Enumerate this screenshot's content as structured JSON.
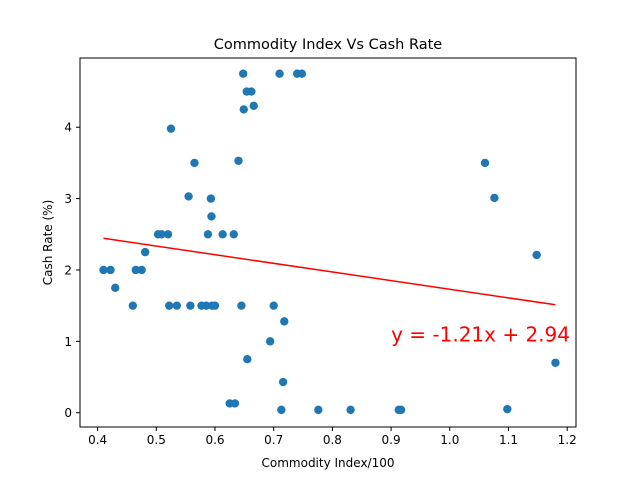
{
  "chart_data": {
    "type": "scatter",
    "title": "Commodity Index Vs Cash Rate",
    "xlabel": "Commodity Index/100",
    "ylabel": "Cash Rate (%)",
    "xlim": [
      0.37,
      1.215
    ],
    "ylim": [
      -0.2,
      4.97
    ],
    "xticks": [
      0.4,
      0.5,
      0.6,
      0.7,
      0.8,
      0.9,
      1.0,
      1.1,
      1.2
    ],
    "xtick_labels": [
      "0.4",
      "0.5",
      "0.6",
      "0.7",
      "0.8",
      "0.9",
      "1.0",
      "1.1",
      "1.2"
    ],
    "yticks": [
      0,
      1,
      2,
      3,
      4
    ],
    "ytick_labels": [
      "0",
      "1",
      "2",
      "3",
      "4"
    ],
    "grid": false,
    "point_color": "#1f77b4",
    "line_color": "#ff0000",
    "series": [
      {
        "values": [
          [
            0.41,
            2.0
          ],
          [
            0.422,
            2.0
          ],
          [
            0.43,
            1.75
          ],
          [
            0.46,
            1.5
          ],
          [
            0.465,
            2.0
          ],
          [
            0.475,
            2.0
          ],
          [
            0.481,
            2.25
          ],
          [
            0.503,
            2.5
          ],
          [
            0.509,
            2.5
          ],
          [
            0.52,
            2.5
          ],
          [
            0.522,
            1.5
          ],
          [
            0.525,
            3.98
          ],
          [
            0.535,
            1.5
          ],
          [
            0.555,
            3.03
          ],
          [
            0.558,
            1.5
          ],
          [
            0.565,
            3.5
          ],
          [
            0.577,
            1.5
          ],
          [
            0.585,
            1.5
          ],
          [
            0.588,
            2.5
          ],
          [
            0.593,
            3.0
          ],
          [
            0.594,
            2.75
          ],
          [
            0.595,
            1.5
          ],
          [
            0.6,
            1.5
          ],
          [
            0.613,
            2.5
          ],
          [
            0.625,
            0.13
          ],
          [
            0.632,
            2.5
          ],
          [
            0.634,
            0.13
          ],
          [
            0.64,
            3.53
          ],
          [
            0.645,
            1.5
          ],
          [
            0.648,
            4.75
          ],
          [
            0.649,
            4.25
          ],
          [
            0.654,
            4.5
          ],
          [
            0.655,
            0.75
          ],
          [
            0.662,
            4.5
          ],
          [
            0.666,
            4.3
          ],
          [
            0.694,
            1.0
          ],
          [
            0.7,
            1.5
          ],
          [
            0.71,
            4.75
          ],
          [
            0.713,
            0.04
          ],
          [
            0.716,
            0.43
          ],
          [
            0.718,
            1.28
          ],
          [
            0.74,
            4.75
          ],
          [
            0.748,
            4.75
          ],
          [
            0.776,
            0.04
          ],
          [
            0.831,
            0.04
          ],
          [
            0.913,
            0.04
          ],
          [
            0.917,
            0.04
          ],
          [
            1.06,
            3.5
          ],
          [
            1.076,
            3.01
          ],
          [
            1.098,
            0.05
          ],
          [
            1.148,
            2.21
          ],
          [
            1.18,
            0.7
          ]
        ]
      }
    ],
    "regression": {
      "slope": -1.21,
      "intercept": 2.94,
      "x_range": [
        0.41,
        1.18
      ],
      "equation_label": "y = -1.21x + 2.94",
      "label_x": 0.9,
      "label_y": 1.0
    }
  }
}
